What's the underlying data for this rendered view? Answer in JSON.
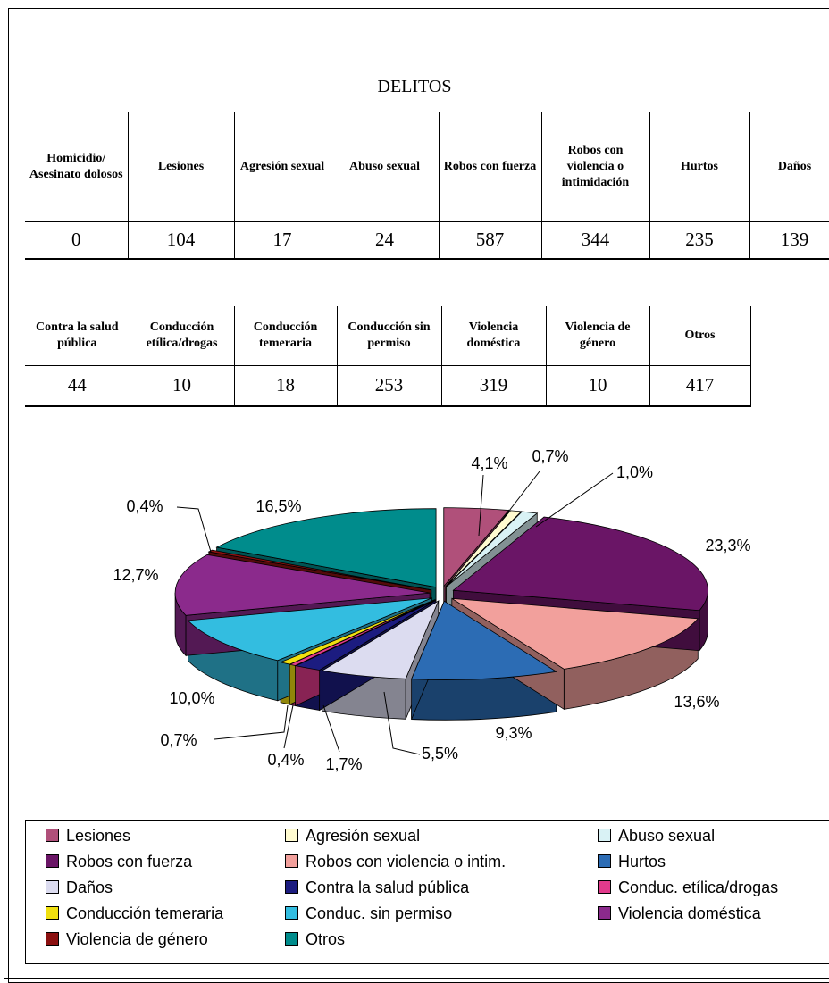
{
  "title": "DELITOS",
  "table1": {
    "headers": [
      "Homicidio/ Asesinato dolosos",
      "Lesiones",
      "Agresión sexual",
      "Abuso sexual",
      "Robos con fuerza",
      "Robos con violencia o intimidación",
      "Hurtos",
      "Daños"
    ],
    "values": [
      0,
      104,
      17,
      24,
      587,
      344,
      235,
      139
    ]
  },
  "table2": {
    "headers": [
      "Contra la salud pública",
      "Conducción etílica/drogas",
      "Conducción temeraria",
      "Conducción sin permiso",
      "Violencia doméstica",
      "Violencia de género",
      "Otros"
    ],
    "values": [
      44,
      10,
      18,
      253,
      319,
      10,
      417
    ]
  },
  "chart_data": {
    "type": "pie",
    "categories": [
      "Lesiones",
      "Agresión sexual",
      "Abuso sexual",
      "Robos con fuerza",
      "Robos con violencia o intim.",
      "Hurtos",
      "Daños",
      "Contra la salud pública",
      "Conduc. etílica/drogas",
      "Conducción temeraria",
      "Conduc. sin permiso",
      "Violencia doméstica",
      "Violencia de género",
      "Otros"
    ],
    "values": [
      4.1,
      0.7,
      1.0,
      23.3,
      13.6,
      9.3,
      5.5,
      1.7,
      0.4,
      0.7,
      10.0,
      12.7,
      0.4,
      16.5
    ],
    "value_labels": [
      "4,1%",
      "0,7%",
      "1,0%",
      "23,3%",
      "13,6%",
      "9,3%",
      "5,5%",
      "1,7%",
      "0,4%",
      "0,7%",
      "10,0%",
      "12,7%",
      "0,4%",
      "16,5%"
    ],
    "colors": [
      "#b0507a",
      "#fffbd0",
      "#d9f2f5",
      "#6a1566",
      "#f2a09c",
      "#2c6cb4",
      "#dcdcf0",
      "#1c1c80",
      "#e23a8c",
      "#f0e010",
      "#33bde0",
      "#8b2a8c",
      "#8b1010",
      "#008c8c"
    ]
  }
}
